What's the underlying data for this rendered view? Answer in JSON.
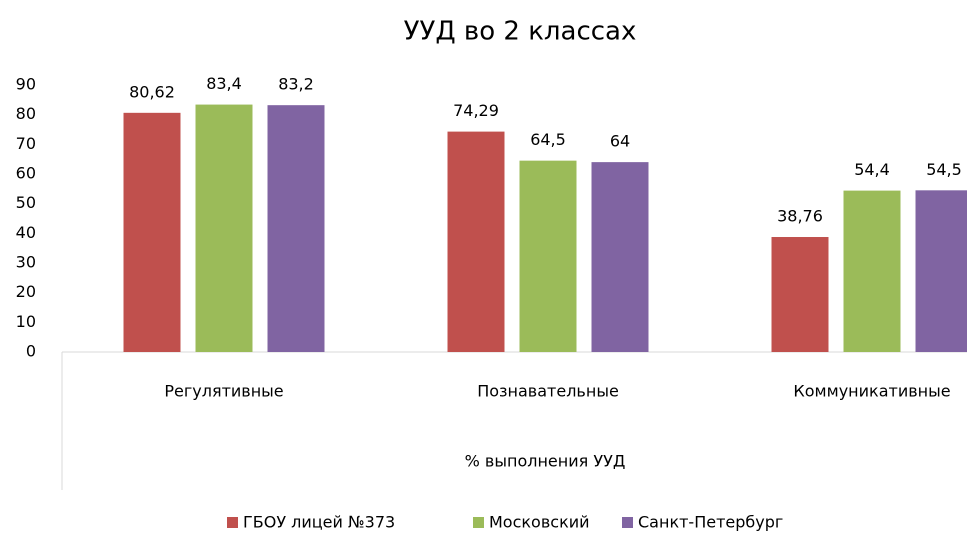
{
  "chart_data": {
    "type": "bar",
    "title": "УУД во 2 классах",
    "x_label": "% выполнения УУД",
    "categories": [
      "Регулятивные",
      "Познавательные",
      "Коммуникативные"
    ],
    "series": [
      {
        "name": "ГБОУ лицей №373",
        "color": "#c0504d",
        "values": [
          80.62,
          74.29,
          38.76
        ],
        "value_labels": [
          "80,62",
          "74,29",
          "38,76"
        ]
      },
      {
        "name": "Московский",
        "color": "#9bbb59",
        "values": [
          83.4,
          64.5,
          54.4
        ],
        "value_labels": [
          "83,4",
          "64,5",
          "54,4"
        ]
      },
      {
        "name": "Санкт-Петербург",
        "color": "#8064a2",
        "values": [
          83.2,
          64,
          54.5
        ],
        "value_labels": [
          "83,2",
          "64",
          "54,5"
        ]
      }
    ],
    "ylim": [
      0,
      90
    ],
    "yticks": [
      0,
      10,
      20,
      30,
      40,
      50,
      60,
      70,
      80,
      90
    ],
    "grid": false,
    "legend": "bottom"
  }
}
